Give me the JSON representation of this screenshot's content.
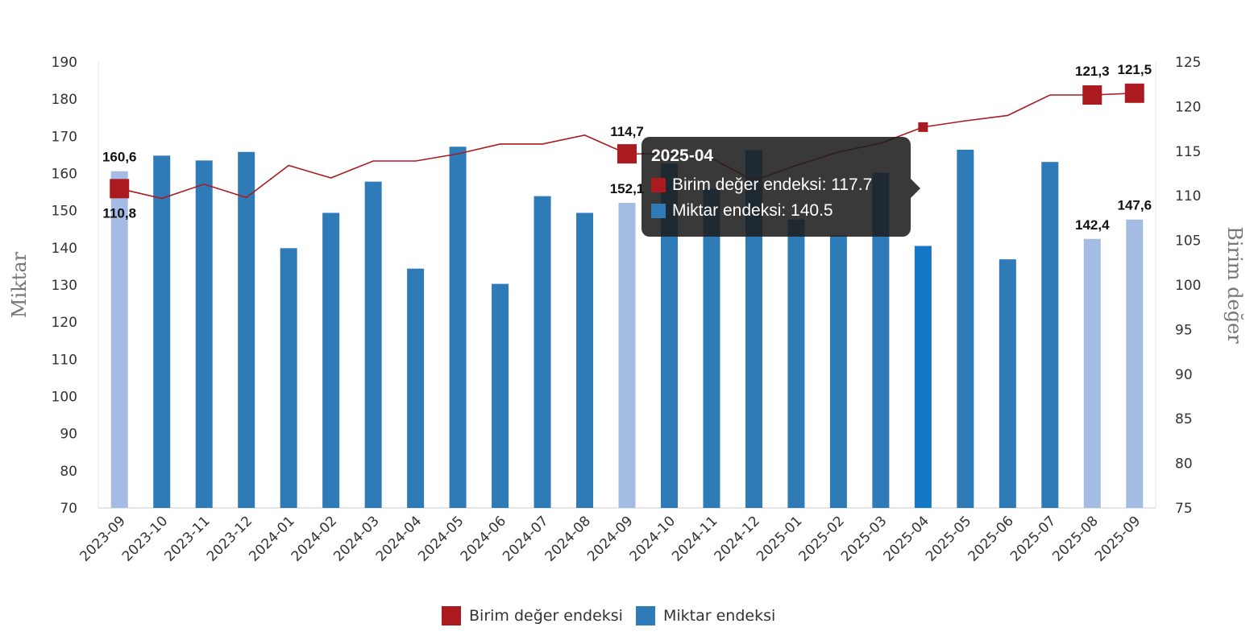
{
  "chart_data": {
    "type": "bar",
    "categories": [
      "2023-09",
      "2023-10",
      "2023-11",
      "2023-12",
      "2024-01",
      "2024-02",
      "2024-03",
      "2024-04",
      "2024-05",
      "2024-06",
      "2024-07",
      "2024-08",
      "2024-09",
      "2024-10",
      "2024-11",
      "2024-12",
      "2025-01",
      "2025-02",
      "2025-03",
      "2025-04",
      "2025-05",
      "2025-06",
      "2025-07",
      "2025-08",
      "2025-09"
    ],
    "series": [
      {
        "name": "Miktar endeksi",
        "axis": "left",
        "type": "bar",
        "color": "#2F7BB8",
        "highlight_color": "#A4BCE3",
        "active_color": "#1476C7",
        "values": [
          160.6,
          164.8,
          163.5,
          165.8,
          139.9,
          149.4,
          157.8,
          134.4,
          167.2,
          130.3,
          153.9,
          149.4,
          152.1,
          162.7,
          155.9,
          166.3,
          147.6,
          143.3,
          160.2,
          140.5,
          166.4,
          136.9,
          163.1,
          142.4,
          147.6
        ],
        "highlighted": [
          0,
          12,
          23,
          24
        ],
        "active": 19
      },
      {
        "name": "Birim değer endeksi",
        "axis": "right",
        "type": "line",
        "color": "#AA1A1F",
        "values": [
          110.8,
          109.7,
          111.3,
          109.8,
          113.4,
          112.0,
          113.9,
          113.9,
          114.7,
          115.8,
          115.8,
          116.8,
          114.7,
          114.7,
          114.2,
          111.7,
          113.4,
          114.9,
          115.9,
          117.7,
          118.4,
          119.0,
          121.3,
          121.3,
          121.5
        ],
        "highlighted": [
          0,
          12,
          23,
          24
        ],
        "active": 19
      }
    ],
    "data_labels": [
      {
        "index": 0,
        "bar": "160,6",
        "line": "110,8"
      },
      {
        "index": 12,
        "bar": "152,1",
        "line": "114,7"
      },
      {
        "index": 23,
        "bar": "142,4",
        "line": "121,3"
      },
      {
        "index": 24,
        "bar": "147,6",
        "line": "121,5"
      }
    ],
    "y_left": {
      "label": "Miktar",
      "range": [
        70,
        190
      ],
      "ticks": [
        70,
        80,
        90,
        100,
        110,
        120,
        130,
        140,
        150,
        160,
        170,
        180,
        190
      ]
    },
    "y_right": {
      "label": "Birim değer",
      "range": [
        75,
        125
      ],
      "ticks": [
        75,
        80,
        85,
        90,
        95,
        100,
        105,
        110,
        115,
        120,
        125
      ]
    },
    "grid": false,
    "legend": "bottom-center"
  },
  "legend": {
    "items": [
      {
        "label": "Birim değer endeksi",
        "color": "#AA1A1F"
      },
      {
        "label": "Miktar endeksi",
        "color": "#2F7BB8"
      }
    ]
  },
  "tooltip": {
    "title": "2025-04",
    "rows": [
      {
        "label": "Birim değer endeksi: 117.7",
        "color": "#AA1A1F"
      },
      {
        "label": "Miktar endeksi: 140.5",
        "color": "#2F7BB8"
      }
    ]
  }
}
